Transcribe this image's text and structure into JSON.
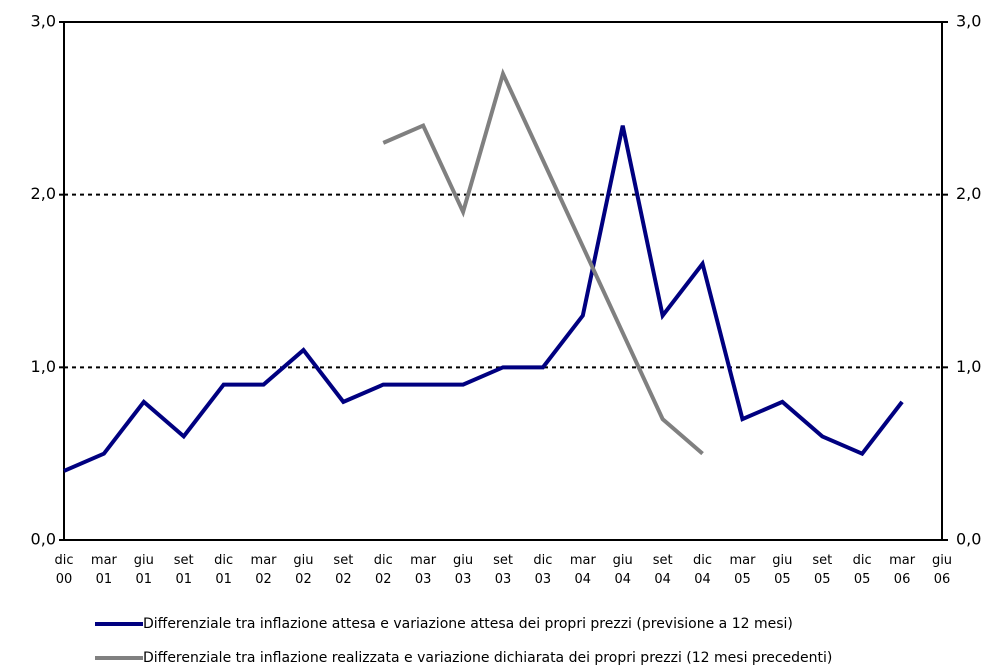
{
  "chart_data": {
    "type": "line",
    "categories": [
      "dic\n00",
      "mar\n01",
      "giu\n01",
      "set\n01",
      "dic\n01",
      "mar\n02",
      "giu\n02",
      "set\n02",
      "dic\n02",
      "mar\n03",
      "giu\n03",
      "set\n03",
      "dic\n03",
      "mar\n04",
      "giu\n04",
      "set\n04",
      "dic\n04",
      "mar\n05",
      "giu\n05",
      "set\n05",
      "dic\n05",
      "mar\n06",
      "giu\n06"
    ],
    "series": [
      {
        "name": "Differenziale tra inflazione attesa e variazione attesa dei propri prezzi (previsione a 12 mesi)",
        "color": "#000080",
        "values": [
          0.4,
          0.5,
          0.8,
          0.6,
          0.9,
          0.9,
          1.1,
          0.8,
          0.9,
          0.9,
          0.9,
          1.0,
          1.0,
          1.3,
          2.4,
          1.3,
          1.6,
          0.7,
          0.8,
          0.6,
          0.5,
          0.8,
          null
        ]
      },
      {
        "name": "Differenziale tra inflazione realizzata e variazione dichiarata dei propri prezzi (12 mesi precedenti)",
        "color": "#808080",
        "values": [
          null,
          null,
          null,
          null,
          null,
          null,
          null,
          null,
          2.3,
          2.4,
          1.9,
          2.7,
          2.2,
          1.7,
          1.2,
          0.7,
          0.5,
          null,
          null,
          null,
          null,
          null,
          null
        ]
      }
    ],
    "ylim": [
      0,
      3
    ],
    "yticks": [
      {
        "value": 0,
        "label": "0,0"
      },
      {
        "value": 1,
        "label": "1,0"
      },
      {
        "value": 2,
        "label": "2,0"
      },
      {
        "value": 3,
        "label": "3,0"
      }
    ],
    "y2lim": [
      0,
      3
    ],
    "y2ticks": [
      {
        "value": 0,
        "label": "0,0"
      },
      {
        "value": 1,
        "label": "1,0"
      },
      {
        "value": 2,
        "label": "2,0"
      },
      {
        "value": 3,
        "label": "3,0"
      }
    ],
    "grid": true
  }
}
